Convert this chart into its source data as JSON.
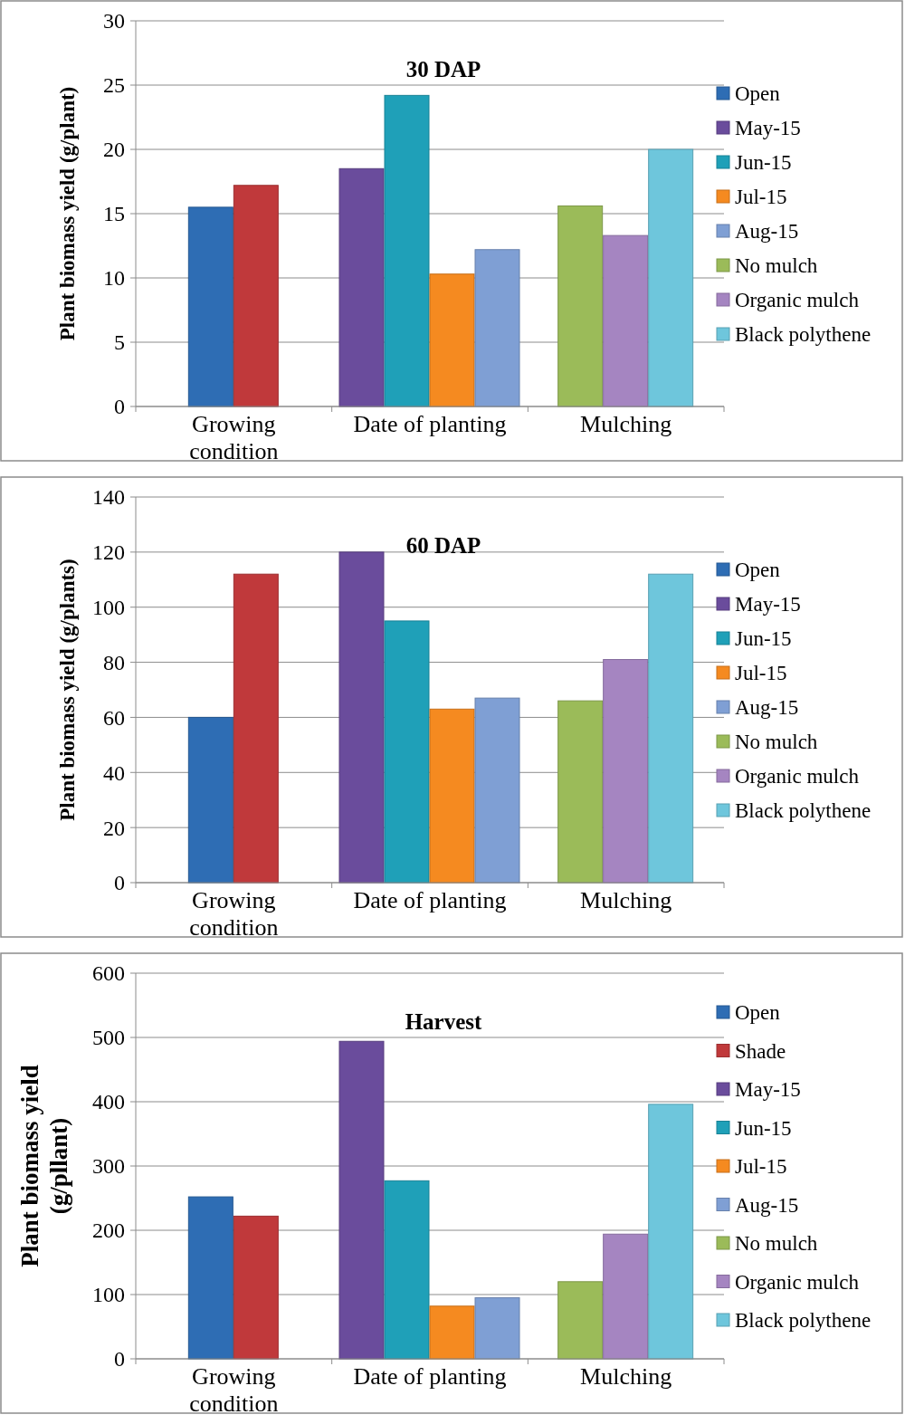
{
  "chart_data": [
    {
      "type": "bar",
      "title": "30 DAP",
      "ylabel": "Plant biomass yield (g/plant)",
      "categories": [
        "Growing condition",
        "Date of planting",
        "Mulching"
      ],
      "ylim": [
        0,
        30
      ],
      "yticks": [
        0,
        5,
        10,
        15,
        20,
        25,
        30
      ],
      "grid": "y",
      "legend": "right",
      "series": [
        {
          "name": "Open",
          "color": "#2e6db4",
          "values": [
            15.5,
            null,
            null
          ]
        },
        {
          "name": null,
          "color": "#c0393b",
          "values": [
            17.2,
            null,
            null
          ]
        },
        {
          "name": "May-15",
          "color": "#6a4c9c",
          "values": [
            null,
            18.5,
            null
          ]
        },
        {
          "name": "Jun-15",
          "color": "#1fa0b8",
          "values": [
            null,
            24.2,
            null
          ]
        },
        {
          "name": "Jul-15",
          "color": "#f58a20",
          "values": [
            null,
            10.3,
            null
          ]
        },
        {
          "name": "Aug-15",
          "color": "#7f9fd4",
          "values": [
            null,
            12.2,
            null
          ]
        },
        {
          "name": "No mulch",
          "color": "#9bbb59",
          "values": [
            null,
            null,
            15.6
          ]
        },
        {
          "name": "Organic mulch",
          "color": "#a585c1",
          "values": [
            null,
            null,
            13.3
          ]
        },
        {
          "name": "Black polythene",
          "color": "#6ec6dc",
          "values": [
            null,
            null,
            20.0
          ]
        }
      ]
    },
    {
      "type": "bar",
      "title": "60 DAP",
      "ylabel": "Plant biomass yield (g/plants)",
      "categories": [
        "Growing condition",
        "Date of planting",
        "Mulching"
      ],
      "ylim": [
        0,
        140
      ],
      "yticks": [
        0,
        20,
        40,
        60,
        80,
        100,
        120,
        140
      ],
      "grid": "y",
      "legend": "right",
      "series": [
        {
          "name": "Open",
          "color": "#2e6db4",
          "values": [
            60,
            null,
            null
          ]
        },
        {
          "name": null,
          "color": "#c0393b",
          "values": [
            112,
            null,
            null
          ]
        },
        {
          "name": "May-15",
          "color": "#6a4c9c",
          "values": [
            null,
            120,
            null
          ]
        },
        {
          "name": "Jun-15",
          "color": "#1fa0b8",
          "values": [
            null,
            95,
            null
          ]
        },
        {
          "name": "Jul-15",
          "color": "#f58a20",
          "values": [
            null,
            63,
            null
          ]
        },
        {
          "name": "Aug-15",
          "color": "#7f9fd4",
          "values": [
            null,
            67,
            null
          ]
        },
        {
          "name": "No mulch",
          "color": "#9bbb59",
          "values": [
            null,
            null,
            66
          ]
        },
        {
          "name": "Organic mulch",
          "color": "#a585c1",
          "values": [
            null,
            null,
            81
          ]
        },
        {
          "name": "Black polythene",
          "color": "#6ec6dc",
          "values": [
            null,
            null,
            112
          ]
        }
      ]
    },
    {
      "type": "bar",
      "title": "Harvest",
      "ylabel": "Plant biomass yield\n(g/pllant)",
      "categories": [
        "Growing condition",
        "Date of planting",
        "Mulching"
      ],
      "ylim": [
        0,
        600
      ],
      "yticks": [
        0,
        100,
        200,
        300,
        400,
        500,
        600
      ],
      "grid": "y",
      "legend": "right",
      "series": [
        {
          "name": "Open",
          "color": "#2e6db4",
          "values": [
            252,
            null,
            null
          ]
        },
        {
          "name": "Shade",
          "color": "#c0393b",
          "values": [
            222,
            null,
            null
          ]
        },
        {
          "name": "May-15",
          "color": "#6a4c9c",
          "values": [
            null,
            494,
            null
          ]
        },
        {
          "name": "Jun-15",
          "color": "#1fa0b8",
          "values": [
            null,
            277,
            null
          ]
        },
        {
          "name": "Jul-15",
          "color": "#f58a20",
          "values": [
            null,
            82,
            null
          ]
        },
        {
          "name": "Aug-15",
          "color": "#7f9fd4",
          "values": [
            null,
            95,
            null
          ]
        },
        {
          "name": "No mulch",
          "color": "#9bbb59",
          "values": [
            null,
            null,
            120
          ]
        },
        {
          "name": "Organic mulch",
          "color": "#a585c1",
          "values": [
            null,
            null,
            194
          ]
        },
        {
          "name": "Black polythene",
          "color": "#6ec6dc",
          "values": [
            null,
            null,
            396
          ]
        }
      ]
    }
  ]
}
